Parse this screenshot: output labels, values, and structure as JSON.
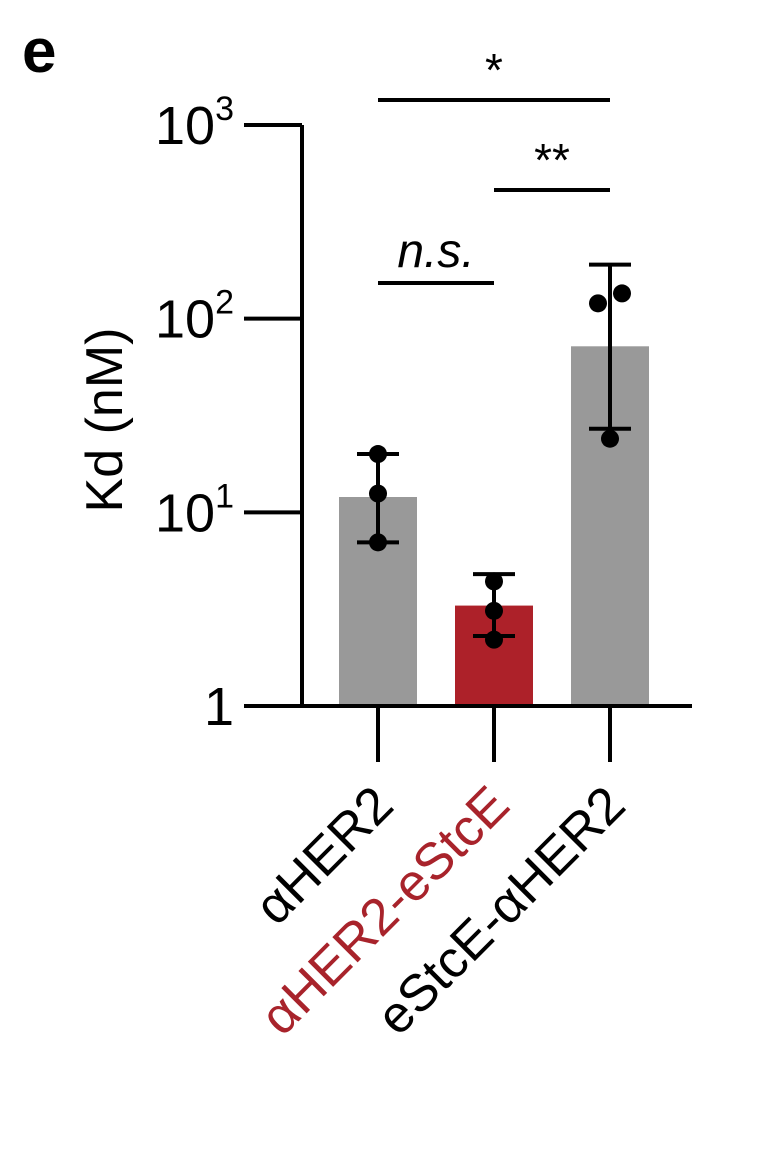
{
  "panel_label": "e",
  "chart_data": {
    "type": "bar",
    "ylabel": "Kd (nM)",
    "yscale": "log",
    "ylim": [
      1,
      1000
    ],
    "yticks": [
      {
        "value": 1,
        "base": "1",
        "exp": ""
      },
      {
        "value": 10,
        "base": "10",
        "exp": "1"
      },
      {
        "value": 100,
        "base": "10",
        "exp": "2"
      },
      {
        "value": 1000,
        "base": "10",
        "exp": "3"
      }
    ],
    "categories": [
      "αHER2",
      "αHER2-eStcE",
      "eStcE-αHER2"
    ],
    "category_colors": [
      "#000000",
      "#a8232b",
      "#000000"
    ],
    "bar_colors": [
      "#999999",
      "#ad2129",
      "#999999"
    ],
    "values": [
      12,
      3.3,
      72
    ],
    "error_low": [
      7,
      2.3,
      27
    ],
    "error_high": [
      20,
      4.8,
      190
    ],
    "points": [
      [
        7,
        12.5,
        20
      ],
      [
        2.2,
        3.1,
        4.4
      ],
      [
        24,
        120,
        135
      ]
    ],
    "significance": [
      {
        "label": "n.s.",
        "from": 0,
        "to": 1,
        "italic": true
      },
      {
        "label": "**",
        "from": 1,
        "to": 2,
        "italic": false
      },
      {
        "label": "*",
        "from": 0,
        "to": 2,
        "italic": false
      }
    ]
  }
}
